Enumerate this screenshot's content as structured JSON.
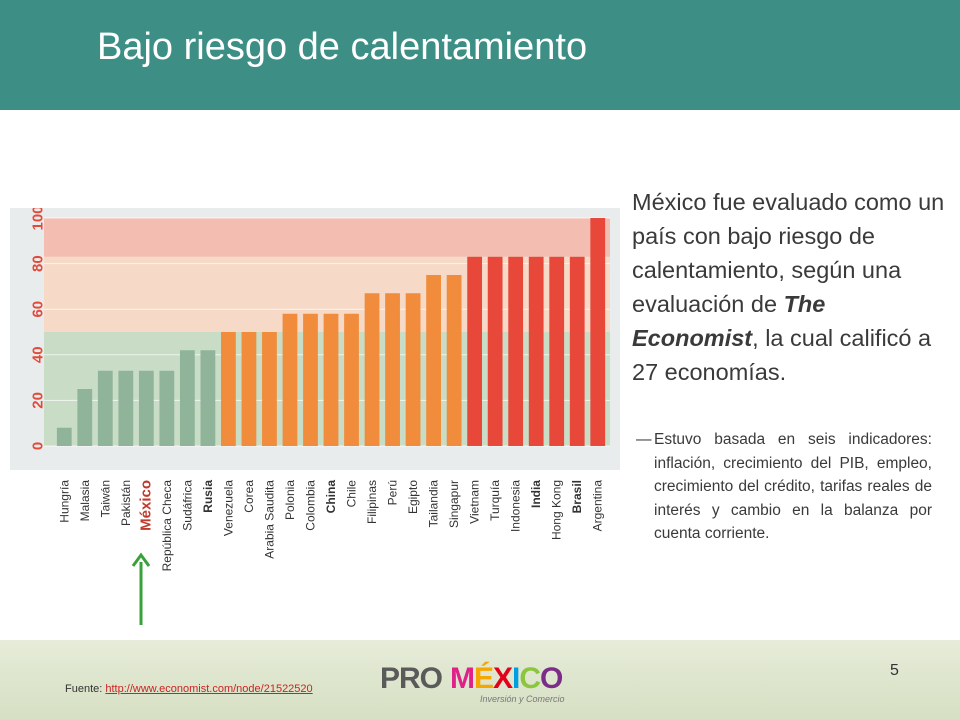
{
  "title": "Bajo riesgo de calentamiento",
  "main_text": {
    "part1": "México fue evaluado como un país con bajo riesgo de calentamiento, según una evaluación de ",
    "em": "The Economist",
    "part2": ", la cual calificó a 27 economías."
  },
  "bullet": {
    "dash": "—",
    "text": "Estuvo basada en seis indicadores: inflación, crecimiento del PIB, empleo, crecimiento del crédito, tarifas reales de interés y cambio en la balanza por cuenta corriente."
  },
  "source": {
    "label": "Fuente: ",
    "link": "http://www.economist.com/node/21522520"
  },
  "logo": {
    "pro": "PRO",
    "mexico_letters": [
      "M",
      "É",
      "X",
      "I",
      "C",
      "O"
    ],
    "mexico_colors": [
      "#e0218a",
      "#f7a600",
      "#e2001a",
      "#009fe3",
      "#8cc63f",
      "#7b2d87"
    ],
    "subtitle": "Inversión y Comercio"
  },
  "page_number": "5",
  "colors": {
    "header": "#3d8f86",
    "band_low": "#c8dcc6",
    "band_mid": "#f6d9c7",
    "band_high": "#f4bdb1",
    "bar_low": "#8fb49a",
    "bar_mid": "#f08c3c",
    "bar_high": "#e8483a",
    "tick_labels": "#e24b3b",
    "arrow": "#3aa03a",
    "mexico_label": "#c0392b"
  },
  "chart_data": {
    "type": "bar",
    "ylim": [
      0,
      100
    ],
    "yticks": [
      "0",
      "20",
      "40",
      "60",
      "80",
      "100"
    ],
    "bands": [
      {
        "from": 0,
        "to": 50,
        "level": "low"
      },
      {
        "from": 50,
        "to": 83,
        "level": "mid"
      },
      {
        "from": 83,
        "to": 100,
        "level": "high"
      }
    ],
    "categories": [
      "Hungría",
      "Malasia",
      "Taiwán",
      "Pakistán",
      "México",
      "República Checa",
      "Sudáfrica",
      "Rusia",
      "Venezuela",
      "Corea",
      "Arabia Saudita",
      "Polonia",
      "Colombia",
      "China",
      "Chile",
      "Filipinas",
      "Perú",
      "Egipto",
      "Tailandia",
      "Singapur",
      "Vietnam",
      "Turquía",
      "Indonesia",
      "India",
      "Hong Kong",
      "Brasil",
      "Argentina"
    ],
    "values": [
      8,
      25,
      33,
      33,
      33,
      33,
      42,
      42,
      50,
      50,
      50,
      58,
      58,
      58,
      58,
      67,
      67,
      67,
      75,
      75,
      83,
      83,
      83,
      83,
      83,
      83,
      100
    ],
    "levels": [
      "low",
      "low",
      "low",
      "low",
      "low",
      "low",
      "low",
      "low",
      "mid",
      "mid",
      "mid",
      "mid",
      "mid",
      "mid",
      "mid",
      "mid",
      "mid",
      "mid",
      "mid",
      "mid",
      "high",
      "high",
      "high",
      "high",
      "high",
      "high",
      "high"
    ],
    "bold_labels": [
      "México",
      "Rusia",
      "China",
      "India",
      "Brasil"
    ],
    "highlight": "México"
  }
}
